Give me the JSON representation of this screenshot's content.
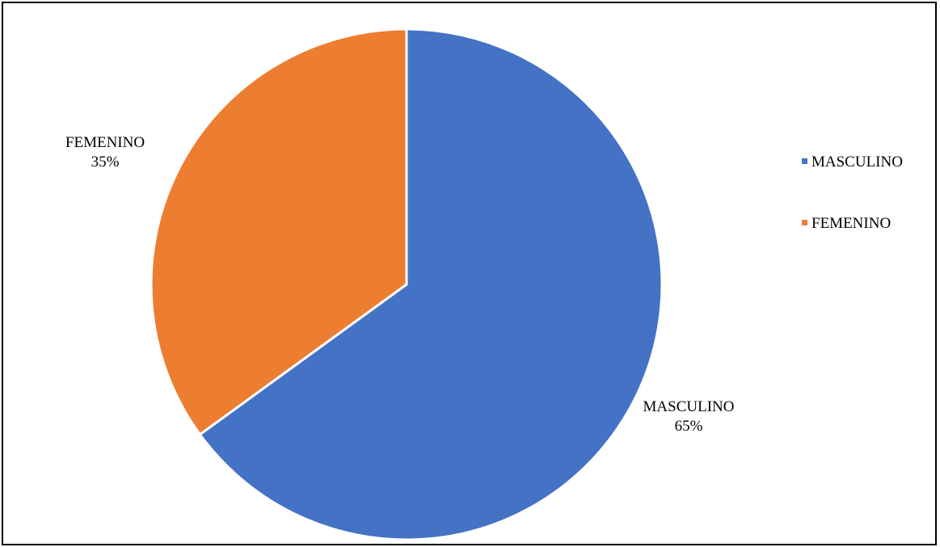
{
  "chart_data": {
    "type": "pie",
    "title": "",
    "legend_position": "right",
    "slices": [
      {
        "name": "MASCULINO",
        "value": 65,
        "label": "65%",
        "color": "#4472C4"
      },
      {
        "name": "FEMENINO",
        "value": 35,
        "label": "35%",
        "color": "#ED7D31"
      }
    ]
  }
}
